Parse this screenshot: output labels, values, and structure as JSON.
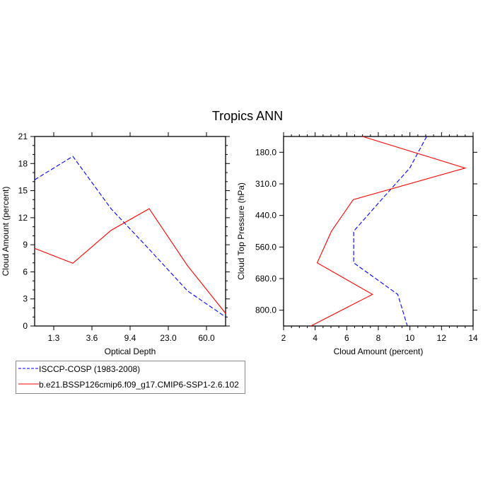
{
  "title": "Tropics ANN",
  "colors": {
    "obs": "#0000ff",
    "model": "#ff0000",
    "axis": "#000000"
  },
  "legend": {
    "placement": "bottom-left",
    "entries": [
      {
        "label": "ISCCP-COSP (1983-2008)",
        "style": "dashed",
        "color": "#0000ff"
      },
      {
        "label": "b.e21.BSSP126cmip6.f09_g17.CMIP6-SSP1-2.6.102",
        "style": "solid",
        "color": "#ff0000"
      }
    ]
  },
  "chart_data": [
    {
      "type": "line",
      "xlabel": "Optical Depth",
      "ylabel": "Cloud Amount (percent)",
      "x_tick_labels": [
        "1.3",
        "3.6",
        "9.4",
        "23.0",
        "60.0"
      ],
      "x_index": [
        0,
        1,
        2,
        3,
        4,
        5
      ],
      "xlim": [
        0,
        5
      ],
      "ylim": [
        0,
        21
      ],
      "y_ticks": [
        "0",
        "3",
        "6",
        "9",
        "12",
        "15",
        "18",
        "21"
      ],
      "series": [
        {
          "name": "ISCCP-COSP (1983-2008)",
          "values": [
            16.2,
            18.8,
            13.0,
            8.5,
            3.9,
            1.0
          ]
        },
        {
          "name": "b.e21.BSSP126cmip6.f09_g17.CMIP6-SSP1-2.6.102",
          "values": [
            8.6,
            6.95,
            10.6,
            13.0,
            6.7,
            1.4
          ]
        }
      ]
    },
    {
      "type": "line",
      "orientation": "horizontal",
      "xlabel": "Cloud Amount (percent)",
      "ylabel": "Cloud Top Pressure (hPa)",
      "y_tick_labels": [
        "180.0",
        "310.0",
        "440.0",
        "560.0",
        "680.0",
        "800.0"
      ],
      "y_index": [
        0,
        1,
        2,
        3,
        4,
        5,
        6
      ],
      "ylim": [
        0,
        6
      ],
      "xlim": [
        2,
        14
      ],
      "x_ticks": [
        "2",
        "4",
        "6",
        "8",
        "10",
        "12",
        "14"
      ],
      "series": [
        {
          "name": "ISCCP-COSP (1983-2008)",
          "values": [
            11.06,
            9.99,
            8.2,
            6.44,
            6.44,
            9.23,
            9.84
          ]
        },
        {
          "name": "b.e21.BSSP126cmip6.f09_g17.CMIP6-SSP1-2.6.102",
          "values": [
            7.0,
            13.5,
            6.41,
            5.03,
            4.13,
            7.63,
            3.73
          ]
        }
      ]
    }
  ]
}
